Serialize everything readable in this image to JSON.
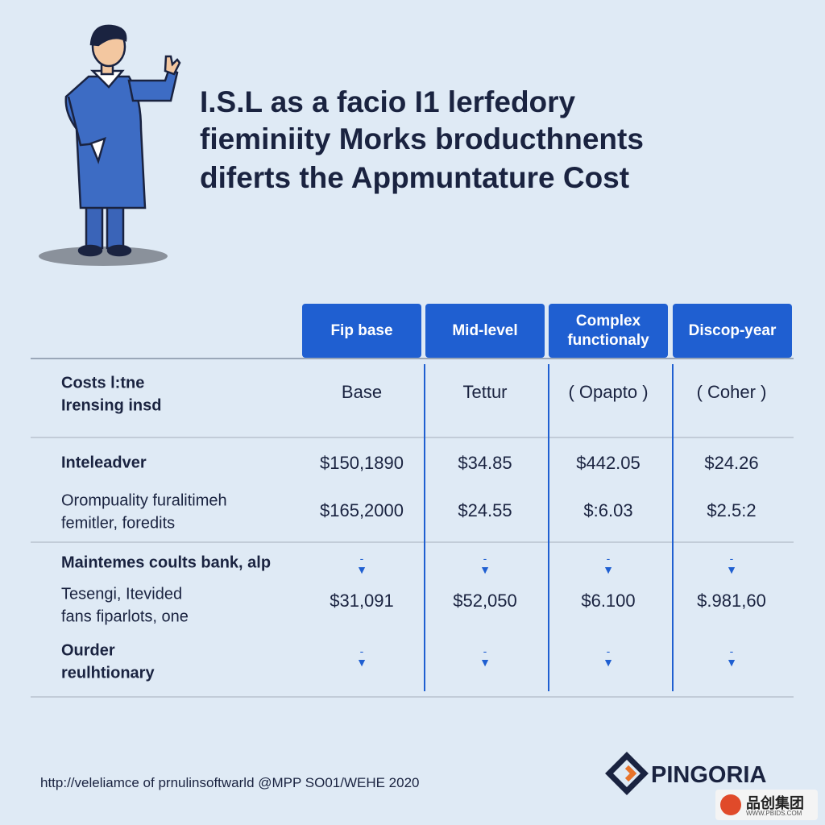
{
  "title": {
    "lines": [
      "I.S.L as a facio I1 lerfedory",
      "fieminiity Morks broducthnents",
      "diferts the Appmuntature Cost"
    ]
  },
  "table": {
    "columns": [
      "Fip base",
      "Mid-level",
      "Complex functionaly",
      "Discop-year"
    ],
    "rows": [
      {
        "label": [
          "Costs l:tne",
          "Irensing insd"
        ],
        "cells": [
          "Base",
          "Tettur",
          "( Opapto )",
          "( Coher )"
        ]
      },
      {
        "label": [
          "Inteleadver"
        ],
        "cells": [
          "$150,1890",
          "$34.85",
          "$442.05",
          "$24.26"
        ]
      },
      {
        "label": [
          "Orompuality furalitimeh",
          "femitler, foredits"
        ],
        "cells": [
          "$165,2000",
          "$24.55",
          "$:6.03",
          "$2.5:2"
        ]
      },
      {
        "label": [
          "Maintemes coults bank, alp"
        ]
      },
      {
        "label": [
          "Tesengi, Itevided",
          "fans fiparlots, one"
        ],
        "cells": [
          "$31,091",
          "$52,050",
          "$6.100",
          "$.981,60"
        ]
      },
      {
        "label": [
          "Ourder",
          "reulhtionary"
        ]
      }
    ]
  },
  "footer": {
    "source": "http://veleliamce of prnulinsoftwarld @MPP SO01/WEHE 2020",
    "brand": "PINGORIA"
  },
  "watermark": {
    "name": "品创集团",
    "url": "WWW.PBIDS.COM"
  }
}
